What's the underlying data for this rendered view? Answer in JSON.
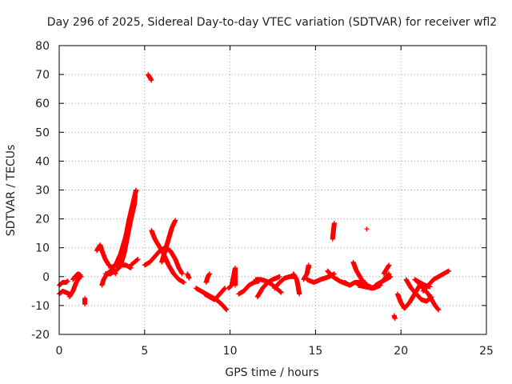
{
  "chart_data": {
    "type": "scatter",
    "title": "Day 296 of 2025, Sidereal Day-to-day VTEC variation (SDTVAR) for receiver wfl2",
    "xlabel": "GPS time / hours",
    "ylabel": "SDTVAR / TECUs",
    "xlim": [
      0,
      25
    ],
    "ylim": [
      -20,
      80
    ],
    "xticks": [
      "0",
      "5",
      "10",
      "15",
      "20",
      "25"
    ],
    "yticks": [
      "-20",
      "-10",
      "0",
      "10",
      "20",
      "30",
      "40",
      "50",
      "60",
      "70",
      "80"
    ],
    "grid": true,
    "marker": "+",
    "color": "#ff0000",
    "series": [
      {
        "name": "tracks",
        "segments": [
          [
            [
              0.0,
              -6
            ],
            [
              0.2,
              -5
            ],
            [
              0.4,
              -5.5
            ],
            [
              0.6,
              -6
            ]
          ],
          [
            [
              0.0,
              -3
            ],
            [
              0.2,
              -2
            ],
            [
              0.4,
              -2
            ],
            [
              0.5,
              -1.5
            ]
          ],
          [
            [
              0.6,
              -7
            ],
            [
              0.8,
              -5
            ],
            [
              1.0,
              -2
            ],
            [
              1.2,
              0
            ],
            [
              1.3,
              0
            ]
          ],
          [
            [
              0.8,
              -1
            ],
            [
              1.0,
              0.5
            ],
            [
              1.1,
              1
            ],
            [
              1.25,
              0.5
            ]
          ],
          [
            [
              1.5,
              -7.5
            ],
            [
              1.5,
              -9.5
            ]
          ],
          [
            [
              2.2,
              9
            ],
            [
              2.4,
              11
            ],
            [
              2.5,
              9
            ],
            [
              2.7,
              6
            ],
            [
              2.9,
              4
            ],
            [
              3.1,
              3
            ],
            [
              3.3,
              1
            ]
          ],
          [
            [
              2.5,
              -3
            ],
            [
              2.6,
              -1
            ],
            [
              2.8,
              1
            ],
            [
              3.0,
              2
            ]
          ],
          [
            [
              2.7,
              1
            ],
            [
              3.0,
              1
            ],
            [
              3.3,
              2
            ],
            [
              3.5,
              3
            ]
          ],
          [
            [
              3.0,
              3
            ],
            [
              3.3,
              4
            ],
            [
              3.6,
              8
            ],
            [
              3.9,
              14
            ],
            [
              4.1,
              20
            ],
            [
              4.3,
              25
            ],
            [
              4.5,
              30
            ]
          ],
          [
            [
              3.3,
              4
            ],
            [
              3.6,
              4
            ],
            [
              3.9,
              4
            ],
            [
              4.2,
              3
            ]
          ],
          [
            [
              3.6,
              4
            ],
            [
              3.8,
              8
            ],
            [
              4.0,
              14
            ],
            [
              4.2,
              20
            ],
            [
              4.4,
              25
            ],
            [
              4.45,
              28
            ]
          ],
          [
            [
              4.2,
              4
            ],
            [
              4.4,
              5
            ],
            [
              4.6,
              6
            ]
          ],
          [
            [
              5.2,
              70
            ],
            [
              5.3,
              69
            ],
            [
              5.4,
              68
            ]
          ],
          [
            [
              5.0,
              4
            ],
            [
              5.3,
              5
            ],
            [
              5.6,
              7
            ],
            [
              5.9,
              9
            ],
            [
              6.2,
              10
            ],
            [
              6.5,
              9
            ],
            [
              6.8,
              6
            ],
            [
              7.0,
              3
            ],
            [
              7.2,
              1
            ]
          ],
          [
            [
              5.4,
              16
            ],
            [
              5.6,
              13
            ],
            [
              5.9,
              10
            ],
            [
              6.1,
              8
            ],
            [
              6.4,
              4
            ],
            [
              6.7,
              1
            ],
            [
              7.0,
              -1
            ],
            [
              7.3,
              -2
            ]
          ],
          [
            [
              6.0,
              5
            ],
            [
              6.2,
              9
            ],
            [
              6.4,
              13
            ],
            [
              6.6,
              17
            ],
            [
              6.8,
              19.5
            ]
          ],
          [
            [
              7.5,
              1
            ],
            [
              7.6,
              -0.5
            ]
          ],
          [
            [
              8.0,
              -4
            ],
            [
              8.3,
              -5
            ],
            [
              8.6,
              -6
            ],
            [
              8.9,
              -7
            ],
            [
              9.2,
              -8
            ],
            [
              9.5,
              -9.5
            ],
            [
              9.8,
              -11.5
            ]
          ],
          [
            [
              8.5,
              -6
            ],
            [
              8.8,
              -7
            ],
            [
              9.1,
              -8
            ],
            [
              9.4,
              -6
            ],
            [
              9.7,
              -4
            ]
          ],
          [
            [
              8.6,
              -2
            ],
            [
              8.7,
              0
            ],
            [
              8.8,
              1
            ]
          ],
          [
            [
              9.9,
              -4
            ],
            [
              10.1,
              -3
            ],
            [
              10.3,
              3
            ],
            [
              10.3,
              -3
            ]
          ],
          [
            [
              10.5,
              -6
            ],
            [
              10.8,
              -5
            ],
            [
              11.1,
              -3
            ],
            [
              11.4,
              -2
            ],
            [
              11.7,
              -1.5
            ]
          ],
          [
            [
              11.5,
              -1
            ],
            [
              11.8,
              -1
            ],
            [
              12.1,
              -1.5
            ],
            [
              12.4,
              -2.5
            ],
            [
              12.7,
              -4
            ],
            [
              13.0,
              -5.5
            ]
          ],
          [
            [
              11.6,
              -7
            ],
            [
              11.9,
              -4
            ],
            [
              12.2,
              -2
            ],
            [
              12.5,
              -1
            ],
            [
              12.9,
              0
            ]
          ],
          [
            [
              12.6,
              -4
            ],
            [
              12.9,
              -2
            ],
            [
              13.2,
              -0.5
            ],
            [
              13.5,
              0
            ],
            [
              13.8,
              0
            ]
          ],
          [
            [
              13.7,
              1
            ],
            [
              13.9,
              -1
            ],
            [
              14.0,
              -4
            ],
            [
              14.05,
              -6
            ]
          ],
          [
            [
              14.3,
              -1
            ],
            [
              14.5,
              1
            ],
            [
              14.6,
              4
            ],
            [
              14.6,
              3
            ]
          ],
          [
            [
              14.5,
              -1
            ],
            [
              14.9,
              -2
            ],
            [
              15.3,
              -1
            ],
            [
              15.8,
              0
            ],
            [
              16.1,
              1
            ]
          ],
          [
            [
              15.7,
              2
            ],
            [
              16.0,
              0
            ],
            [
              16.4,
              -1.5
            ],
            [
              16.8,
              -2.5
            ]
          ],
          [
            [
              16.0,
              13
            ],
            [
              16.05,
              16
            ],
            [
              16.1,
              18.5
            ]
          ],
          [
            [
              16.7,
              -2
            ],
            [
              17.0,
              -3
            ],
            [
              17.3,
              -2
            ],
            [
              17.6,
              -2
            ],
            [
              17.9,
              -2
            ]
          ],
          [
            [
              17.2,
              5
            ],
            [
              17.4,
              2
            ],
            [
              17.7,
              -1
            ],
            [
              18.0,
              -3
            ],
            [
              18.4,
              -4
            ],
            [
              18.8,
              -3
            ]
          ],
          [
            [
              17.5,
              -3
            ],
            [
              17.9,
              -3.5
            ],
            [
              18.3,
              -4
            ],
            [
              18.7,
              -3
            ],
            [
              19.0,
              -1
            ],
            [
              19.3,
              1
            ]
          ],
          [
            [
              18.0,
              16.5
            ]
          ],
          [
            [
              18.5,
              -3
            ],
            [
              18.8,
              -2
            ],
            [
              19.1,
              -1
            ],
            [
              19.4,
              0
            ]
          ],
          [
            [
              19.0,
              1
            ],
            [
              19.2,
              3
            ],
            [
              19.3,
              4
            ]
          ],
          [
            [
              19.6,
              -13.5
            ],
            [
              19.65,
              -14.5
            ]
          ],
          [
            [
              19.8,
              -6
            ],
            [
              20.0,
              -9
            ],
            [
              20.2,
              -11
            ],
            [
              20.5,
              -9
            ],
            [
              20.8,
              -6
            ],
            [
              21.1,
              -3
            ]
          ],
          [
            [
              20.3,
              -1
            ],
            [
              20.6,
              -4
            ],
            [
              20.9,
              -6
            ],
            [
              21.2,
              -8
            ],
            [
              21.5,
              -8.5
            ],
            [
              21.8,
              -7
            ]
          ],
          [
            [
              21.0,
              -2
            ],
            [
              21.3,
              -4
            ],
            [
              21.6,
              -6
            ],
            [
              21.8,
              -8
            ],
            [
              22.0,
              -10
            ],
            [
              22.2,
              -11.5
            ]
          ],
          [
            [
              21.3,
              -5
            ],
            [
              21.6,
              -3
            ],
            [
              21.9,
              -1
            ],
            [
              22.2,
              0
            ],
            [
              22.5,
              1
            ],
            [
              22.8,
              2
            ]
          ],
          [
            [
              20.8,
              -1
            ],
            [
              21.1,
              -2
            ],
            [
              21.4,
              -3
            ],
            [
              21.7,
              -3.5
            ]
          ]
        ]
      }
    ]
  }
}
